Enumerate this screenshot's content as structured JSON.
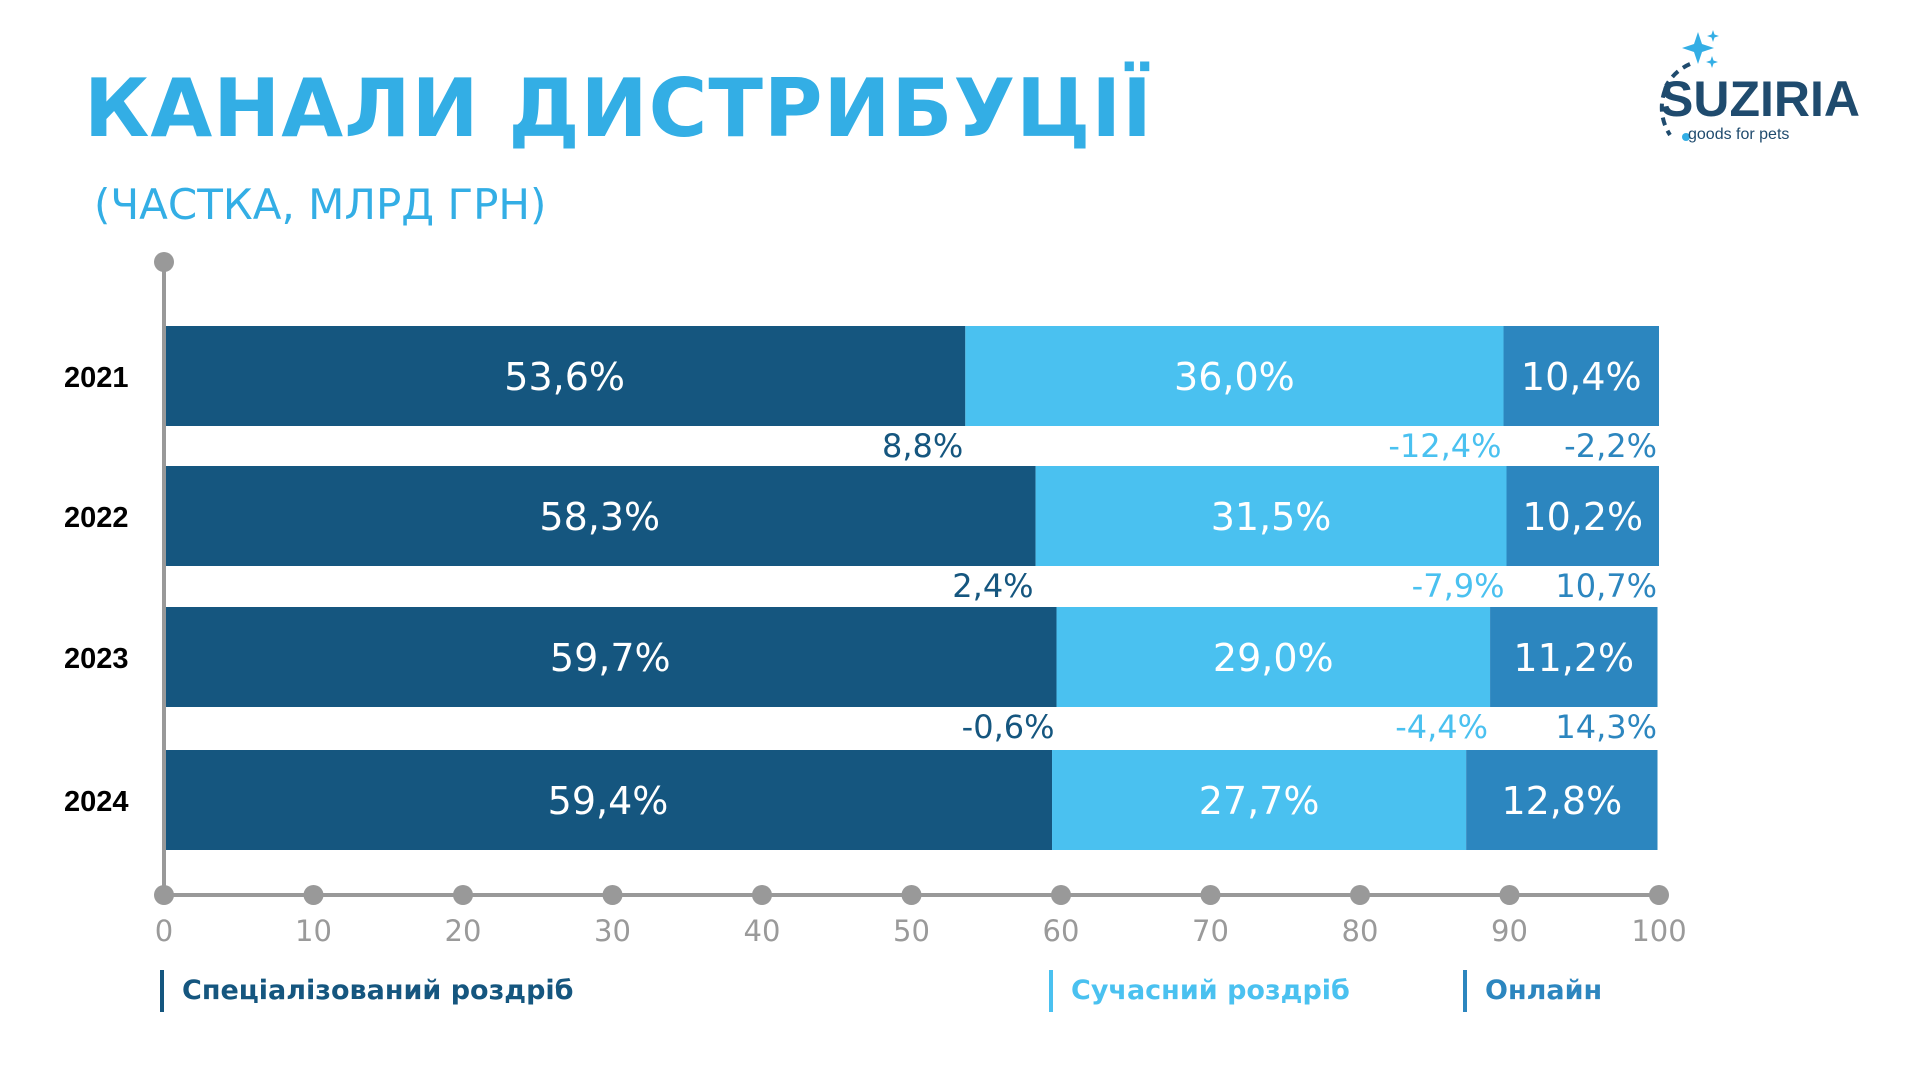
{
  "title": "КАНАЛИ ДИСТРИБУЦІЇ",
  "subtitle": "(ЧАСТКА, МЛРД ГРН)",
  "logo": {
    "name": "SUZIRIA",
    "tagline": "goods for pets"
  },
  "colors": {
    "specialized": "#15567F",
    "modern": "#4AC1F0",
    "online": "#2C86BF",
    "axis": "#999999",
    "title": "#33AEE5"
  },
  "chart_data": {
    "type": "bar",
    "orientation": "horizontal",
    "stacked": true,
    "categories": [
      "2021",
      "2022",
      "2023",
      "2024"
    ],
    "series": [
      {
        "name": "Спеціалізований роздріб",
        "values": [
          53.6,
          58.3,
          59.7,
          59.4
        ],
        "labels": [
          "53,6%",
          "58,3%",
          "59,7%",
          "59,4%"
        ]
      },
      {
        "name": "Сучасний роздріб",
        "values": [
          36.0,
          31.5,
          29.0,
          27.7
        ],
        "labels": [
          "36,0%",
          "31,5%",
          "29,0%",
          "27,7%"
        ]
      },
      {
        "name": "Онлайн",
        "values": [
          10.4,
          10.2,
          11.2,
          12.8
        ],
        "labels": [
          "10,4%",
          "10,2%",
          "11,2%",
          "12,8%"
        ]
      }
    ],
    "changes": [
      [
        "8,8%",
        "-12,4%",
        "-2,2%"
      ],
      [
        "2,4%",
        "-7,9%",
        "10,7%"
      ],
      [
        "-0,6%",
        "-4,4%",
        "14,3%"
      ]
    ],
    "xlim": [
      0,
      100
    ],
    "xticks": [
      "0",
      "10",
      "20",
      "30",
      "40",
      "50",
      "60",
      "70",
      "80",
      "90",
      "100"
    ],
    "legend_position": "bottom",
    "grid": false
  }
}
